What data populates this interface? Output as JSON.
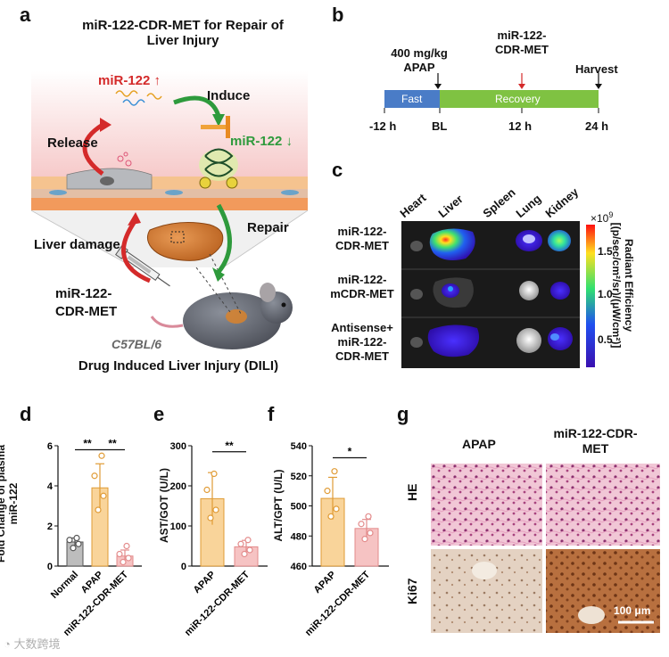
{
  "panels": {
    "a": {
      "letter": "a",
      "title_line1": "miR-122-CDR-MET for Repair of",
      "title_line2": "Liver Injury",
      "mir_up": "miR-122",
      "mir_down": "miR-122",
      "induce": "Induce",
      "release": "Release",
      "repair": "Repair",
      "liver_damage": "Liver damage",
      "drug_line1": "miR-122-",
      "drug_line2": "CDR-MET",
      "mouse_strain": "C57BL/6",
      "footer": "Drug Induced Liver Injury (DILI)",
      "colors": {
        "red": "#d42a2a",
        "green": "#2e9a3c",
        "pink_bg": "#f8d7d7",
        "tissue": "#f2a05a"
      }
    },
    "b": {
      "letter": "b",
      "dose": "400 mg/kg",
      "drug": "APAP",
      "injection_line1": "miR-122-",
      "injection_line2": "CDR-MET",
      "harvest": "Harvest",
      "fast_label": "Fast",
      "recovery_label": "Recovery",
      "ticks": [
        "-12 h",
        "BL",
        "12 h",
        "24 h"
      ],
      "colors": {
        "fast": "#4a7cc7",
        "recovery": "#7fc242"
      }
    },
    "c": {
      "letter": "c",
      "organs": [
        "Heart",
        "Liver",
        "Spleen",
        "Lung",
        "Kidney"
      ],
      "rows": [
        {
          "line1": "miR-122-",
          "line2": "CDR-MET"
        },
        {
          "line1": "miR-122-",
          "line2": "mCDR-MET"
        },
        {
          "line1": "Antisense+",
          "line2": "miR-122-",
          "line3": "CDR-MET"
        }
      ],
      "colorbar": {
        "multiplier": "×10",
        "exponent": "9",
        "ticks": [
          "1.5",
          "1.0",
          "0.5"
        ],
        "label": "Radiant Efficiency",
        "units": "[(p/sec/cm²/sr)/(μW/cm²)]"
      }
    },
    "d": {
      "letter": "d",
      "ylabel_line1": "Fold Change of plasma",
      "ylabel_line2": "miR-122",
      "yticks": [
        "0",
        "2",
        "4",
        "6"
      ],
      "sig": [
        "**",
        "**"
      ]
    },
    "e": {
      "letter": "e",
      "ylabel": "AST/GOT (U/L)",
      "yticks": [
        "0",
        "100",
        "200",
        "300"
      ],
      "sig": [
        "**"
      ]
    },
    "f": {
      "letter": "f",
      "ylabel": "ALT/GPT (U/L)",
      "yticks": [
        "460",
        "480",
        "500",
        "520",
        "540"
      ],
      "sig": [
        "*"
      ]
    },
    "g": {
      "letter": "g",
      "col1": "APAP",
      "col2_line1": "miR-122-CDR-",
      "col2_line2": "MET",
      "row1": "HE",
      "row2": "Ki67",
      "scale": "100 μm"
    }
  },
  "watermark": "大数跨境",
  "chart_data": [
    {
      "type": "bar",
      "ylabel": "Fold Change of plasma miR-122",
      "categories": [
        "Normal",
        "APAP",
        "miR-122-CDR-MET"
      ],
      "values": [
        1.2,
        3.9,
        0.5
      ],
      "errors": [
        0.2,
        1.2,
        0.3
      ],
      "points": [
        [
          0.9,
          1.1,
          1.3,
          1.4
        ],
        [
          2.8,
          3.5,
          4.5,
          5.5
        ],
        [
          0.2,
          0.4,
          0.6,
          1.0
        ]
      ],
      "ylim": [
        0,
        6
      ],
      "colors": [
        "#bdbdbd",
        "#f9d49a",
        "#f6c3c3"
      ]
    },
    {
      "type": "bar",
      "ylabel": "AST/GOT (U/L)",
      "categories": [
        "APAP",
        "miR-122-CDR-MET"
      ],
      "values": [
        168,
        48
      ],
      "errors": [
        65,
        16
      ],
      "points": [
        [
          120,
          140,
          190,
          230
        ],
        [
          30,
          40,
          55,
          65
        ]
      ],
      "ylim": [
        0,
        300
      ],
      "colors": [
        "#f9d49a",
        "#f6c3c3"
      ]
    },
    {
      "type": "bar",
      "ylabel": "ALT/GPT (U/L)",
      "categories": [
        "APAP",
        "miR-122-CDR-MET"
      ],
      "values": [
        505,
        485
      ],
      "errors": [
        14,
        6
      ],
      "points": [
        [
          493,
          498,
          510,
          523
        ],
        [
          478,
          482,
          488,
          493
        ]
      ],
      "ylim": [
        460,
        540
      ],
      "colors": [
        "#f9d49a",
        "#f6c3c3"
      ]
    }
  ]
}
